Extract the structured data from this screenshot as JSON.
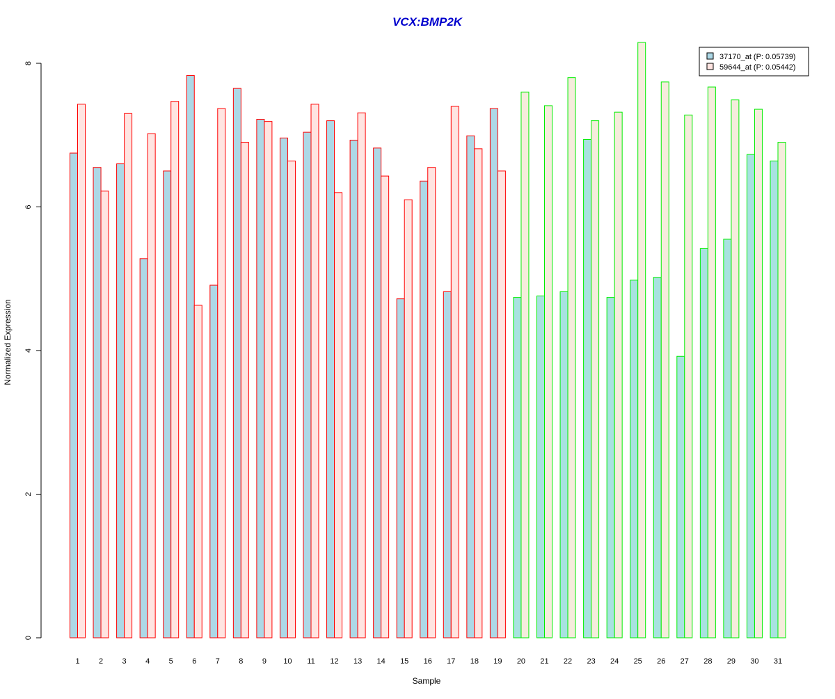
{
  "chart_data": {
    "type": "bar",
    "title": "VCX:BMP2K",
    "xlabel": "Sample",
    "ylabel": "Normalized Expression",
    "ylim": [
      0,
      8.2
    ],
    "yticks": [
      0,
      2,
      4,
      6,
      8
    ],
    "categories": [
      "1",
      "2",
      "3",
      "4",
      "5",
      "6",
      "7",
      "8",
      "9",
      "10",
      "11",
      "12",
      "13",
      "14",
      "15",
      "16",
      "17",
      "18",
      "19",
      "20",
      "21",
      "22",
      "23",
      "24",
      "25",
      "26",
      "27",
      "28",
      "29",
      "30",
      "31"
    ],
    "series": [
      {
        "name": "37170_at (P: 0.05739)",
        "values": [
          6.75,
          6.55,
          6.6,
          5.28,
          6.5,
          7.83,
          4.91,
          7.65,
          7.22,
          6.96,
          7.04,
          7.2,
          6.93,
          6.82,
          4.72,
          6.36,
          4.82,
          6.99,
          7.37,
          4.74,
          4.76,
          4.82,
          6.94,
          4.74,
          4.98,
          5.02,
          3.92,
          5.42,
          5.55,
          6.73,
          6.64
        ]
      },
      {
        "name": "59644_at (P: 0.05442)",
        "values": [
          7.43,
          6.22,
          7.3,
          7.02,
          7.47,
          4.63,
          7.37,
          6.9,
          7.19,
          6.64,
          7.43,
          6.2,
          7.31,
          6.43,
          6.1,
          6.55,
          7.4,
          6.81,
          6.5,
          7.6,
          7.41,
          7.8,
          7.2,
          7.32,
          8.29,
          7.74,
          7.28,
          7.67,
          7.49,
          7.36,
          6.9
        ]
      }
    ],
    "groups": [
      {
        "samples": "1-19",
        "outline": "#ff0000",
        "fill_series1": "#add8e6",
        "fill_series2": "#ffe4e1"
      },
      {
        "samples": "20-31",
        "outline": "#00ee00",
        "fill_series1": "#a8e2e0",
        "fill_series2": "#f5ecdc"
      }
    ],
    "colors": {
      "title": "#0000cd",
      "legend_series1": "#add8e6",
      "legend_series2": "#ffe4e1"
    },
    "legend_position": "top-right",
    "grid": false
  }
}
